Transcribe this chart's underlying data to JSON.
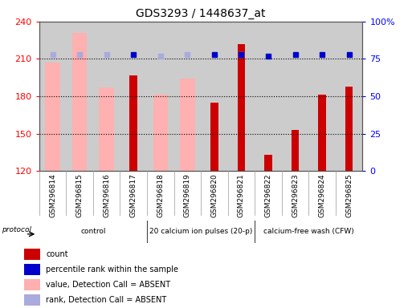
{
  "title": "GDS3293 / 1448637_at",
  "samples": [
    "GSM296814",
    "GSM296815",
    "GSM296816",
    "GSM296817",
    "GSM296818",
    "GSM296819",
    "GSM296820",
    "GSM296821",
    "GSM296822",
    "GSM296823",
    "GSM296824",
    "GSM296825"
  ],
  "ylim": [
    120,
    240
  ],
  "yticks": [
    120,
    150,
    180,
    210,
    240
  ],
  "y2lim": [
    0,
    100
  ],
  "y2ticks": [
    0,
    25,
    50,
    75,
    100
  ],
  "count_values": [
    null,
    null,
    null,
    197,
    null,
    null,
    175,
    222,
    133,
    153,
    181,
    188
  ],
  "count_color": "#cc0000",
  "absent_value_values": [
    207,
    231,
    187,
    null,
    181,
    194,
    null,
    null,
    null,
    null,
    null,
    null
  ],
  "absent_value_color": "#ffb0b0",
  "percentile_values": [
    null,
    null,
    null,
    78,
    null,
    null,
    78,
    78,
    77,
    78,
    78,
    78
  ],
  "percentile_color": "#0000cc",
  "absent_rank_values": [
    78,
    78,
    78,
    null,
    77,
    78,
    null,
    78,
    null,
    null,
    null,
    null
  ],
  "absent_rank_color": "#aaaadd",
  "groups": [
    {
      "start": 0,
      "end": 3,
      "label": "control"
    },
    {
      "start": 4,
      "end": 7,
      "label": "20 calcium ion pulses (20-p)"
    },
    {
      "start": 8,
      "end": 11,
      "label": "calcium-free wash (CFW)"
    }
  ],
  "group_color": "#90ee90",
  "legend_items": [
    {
      "label": "count",
      "color": "#cc0000"
    },
    {
      "label": "percentile rank within the sample",
      "color": "#0000cc"
    },
    {
      "label": "value, Detection Call = ABSENT",
      "color": "#ffb0b0"
    },
    {
      "label": "rank, Detection Call = ABSENT",
      "color": "#aaaadd"
    }
  ]
}
